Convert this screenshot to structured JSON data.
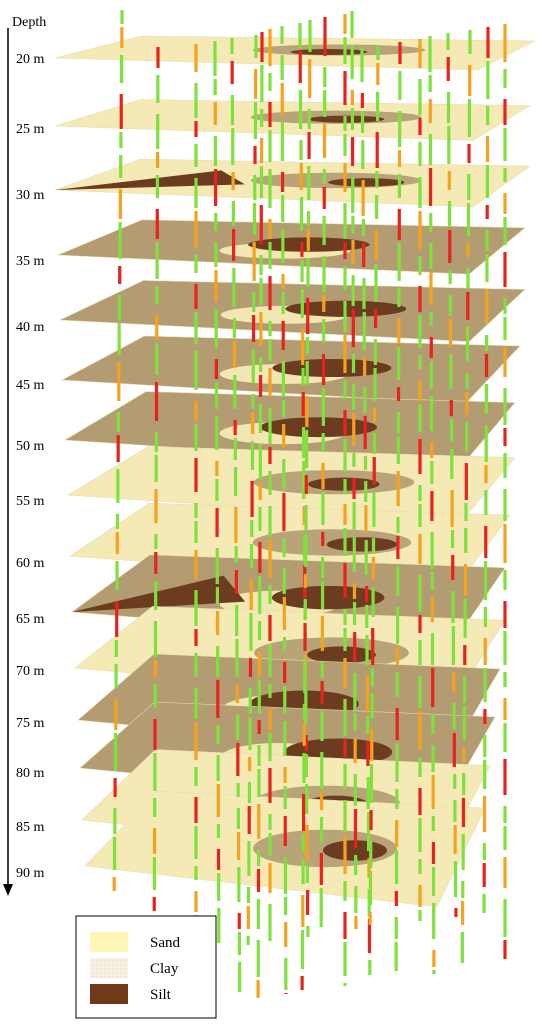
{
  "axis": {
    "title": "Depth",
    "ticks": [
      "20 m",
      "25 m",
      "30 m",
      "35 m",
      "40 m",
      "45 m",
      "50 m",
      "55 m",
      "60 m",
      "65 m",
      "70 m",
      "75 m",
      "80 m",
      "85 m",
      "90 m"
    ]
  },
  "legend": {
    "items": [
      {
        "label": "Sand",
        "color": "#fdf6b5"
      },
      {
        "label": "Clay",
        "color": "#f4ecdc"
      },
      {
        "label": "Silt",
        "color": "#6e3a17"
      }
    ]
  },
  "colors": {
    "sand": "#f5eab6",
    "clay": "#b39b72",
    "silt": "#6b3c1f",
    "borehole_green": "#7ee13c",
    "borehole_orange": "#f5a31e",
    "borehole_red": "#e8231c"
  }
}
